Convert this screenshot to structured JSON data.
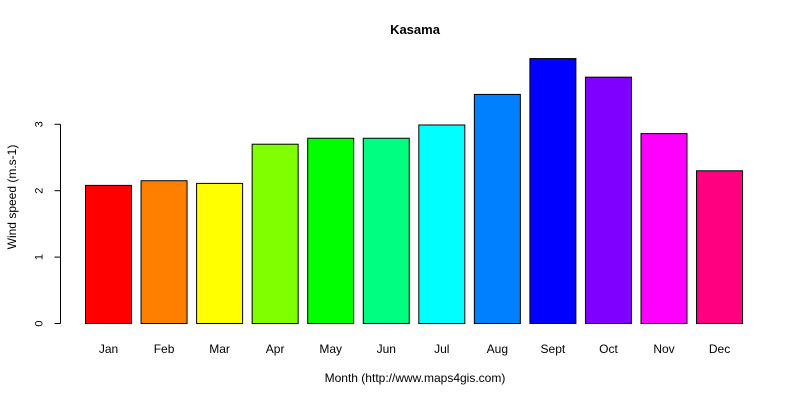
{
  "chart_data": {
    "type": "bar",
    "title": "Kasama",
    "xlabel": "Month (http://www.maps4gis.com)",
    "ylabel": "Wind speed (m.s-1)",
    "categories": [
      "Jan",
      "Feb",
      "Mar",
      "Apr",
      "May",
      "Jun",
      "Jul",
      "Aug",
      "Sept",
      "Oct",
      "Nov",
      "Dec"
    ],
    "values": [
      2.08,
      2.15,
      2.11,
      2.7,
      2.79,
      2.79,
      2.99,
      3.45,
      3.99,
      3.71,
      2.86,
      2.3
    ],
    "colors": [
      "#FF0000",
      "#FF8000",
      "#FFFF00",
      "#80FF00",
      "#00FF00",
      "#00FF80",
      "#00FFFF",
      "#0080FF",
      "#0000FF",
      "#8000FF",
      "#FF00FF",
      "#FF0080"
    ],
    "yticks": [
      0,
      1,
      2,
      3
    ],
    "ylim": [
      0,
      4
    ],
    "grid": false,
    "legend": "none"
  }
}
